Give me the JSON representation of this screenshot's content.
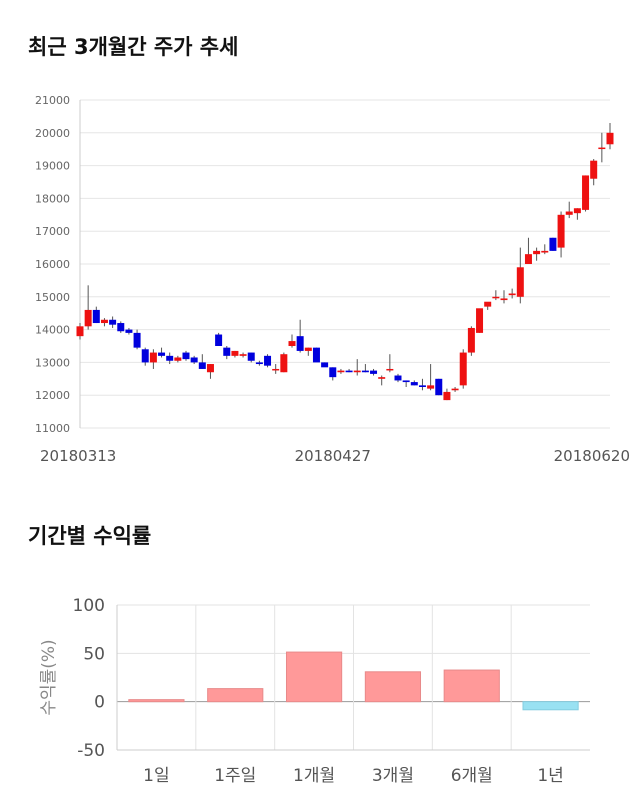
{
  "titles": {
    "price_trend": "최근 3개월간 주가 추세",
    "returns": "기간별 수익률"
  },
  "chart_data": [
    {
      "type": "candlestick",
      "title": "최근 3개월간 주가 추세",
      "ylim": [
        11000,
        21000
      ],
      "y_ticks": [
        "11000",
        "12000",
        "13000",
        "14000",
        "15000",
        "16000",
        "17000",
        "18000",
        "19000",
        "20000",
        "21000"
      ],
      "x_labels": [
        {
          "index": 0,
          "label": "20180313"
        },
        {
          "index": 31,
          "label": "20180427"
        },
        {
          "index": 63,
          "label": "20180620"
        }
      ],
      "up_color": "#ee1111",
      "down_color": "#0000dd",
      "ohlc": [
        [
          13800,
          14200,
          13700,
          14100
        ],
        [
          14100,
          15350,
          14000,
          14600
        ],
        [
          14600,
          14700,
          14200,
          14200
        ],
        [
          14200,
          14350,
          14100,
          14300
        ],
        [
          14300,
          14400,
          14050,
          14150
        ],
        [
          14200,
          14250,
          13900,
          13950
        ],
        [
          14000,
          14050,
          13850,
          13900
        ],
        [
          13900,
          14000,
          13400,
          13450
        ],
        [
          13400,
          13450,
          12900,
          13000
        ],
        [
          13000,
          13400,
          12800,
          13300
        ],
        [
          13300,
          13450,
          13150,
          13200
        ],
        [
          13200,
          13300,
          12950,
          13050
        ],
        [
          13050,
          13200,
          13000,
          13150
        ],
        [
          13300,
          13350,
          13050,
          13100
        ],
        [
          13150,
          13200,
          12950,
          13000
        ],
        [
          13000,
          13250,
          12800,
          12800
        ],
        [
          12700,
          12950,
          12500,
          12950
        ],
        [
          13850,
          13900,
          13500,
          13500
        ],
        [
          13450,
          13500,
          13100,
          13200
        ],
        [
          13200,
          13350,
          13150,
          13350
        ],
        [
          13200,
          13300,
          13150,
          13250
        ],
        [
          13300,
          13300,
          13000,
          13050
        ],
        [
          13000,
          13050,
          12900,
          12950
        ],
        [
          13200,
          13250,
          12850,
          12900
        ],
        [
          12800,
          12950,
          12650,
          12800
        ],
        [
          12700,
          13300,
          12700,
          13250
        ],
        [
          13500,
          13850,
          13450,
          13650
        ],
        [
          13800,
          14300,
          13300,
          13350
        ],
        [
          13350,
          13450,
          13200,
          13450
        ],
        [
          13450,
          13450,
          13100,
          13000
        ],
        [
          13000,
          13000,
          12900,
          12850
        ],
        [
          12850,
          12850,
          12450,
          12550
        ],
        [
          12700,
          12800,
          12650,
          12750
        ],
        [
          12750,
          12800,
          12700,
          12700
        ],
        [
          12700,
          13100,
          12600,
          12750
        ],
        [
          12750,
          12950,
          12700,
          12700
        ],
        [
          12750,
          12800,
          12600,
          12650
        ],
        [
          12500,
          12600,
          12300,
          12550
        ],
        [
          12800,
          13250,
          12700,
          12800
        ],
        [
          12600,
          12650,
          12400,
          12450
        ],
        [
          12450,
          12450,
          12250,
          12400
        ],
        [
          12400,
          12450,
          12300,
          12300
        ],
        [
          12300,
          12500,
          12150,
          12250
        ],
        [
          12200,
          12950,
          12150,
          12300
        ],
        [
          12500,
          12500,
          12000,
          12000
        ],
        [
          11850,
          12200,
          11850,
          12100
        ],
        [
          12150,
          12250,
          12100,
          12200
        ],
        [
          12300,
          13400,
          12200,
          13300
        ],
        [
          13300,
          14100,
          13200,
          14050
        ],
        [
          13900,
          14600,
          13900,
          14650
        ],
        [
          14700,
          14800,
          14600,
          14850
        ],
        [
          15000,
          15200,
          14900,
          15000
        ],
        [
          14900,
          15200,
          14800,
          14950
        ],
        [
          15050,
          15250,
          14950,
          15100
        ],
        [
          15000,
          16500,
          14800,
          15900
        ],
        [
          16000,
          16800,
          16000,
          16300
        ],
        [
          16300,
          16500,
          16100,
          16400
        ],
        [
          16350,
          16600,
          16300,
          16400
        ],
        [
          16800,
          16800,
          16400,
          16400
        ],
        [
          16500,
          17600,
          16200,
          17500
        ],
        [
          17500,
          17900,
          17400,
          17600
        ],
        [
          17550,
          17700,
          17350,
          17700
        ],
        [
          17650,
          18700,
          17600,
          18700
        ],
        [
          18600,
          19200,
          18400,
          19150
        ],
        [
          19550,
          20000,
          19100,
          19550
        ],
        [
          19650,
          20300,
          19500,
          20000
        ]
      ]
    },
    {
      "type": "bar",
      "title": "기간별 수익률",
      "ylabel": "수익률(%)",
      "ylim": [
        -50,
        100
      ],
      "y_ticks": [
        "-50",
        "0",
        "50",
        "100"
      ],
      "categories": [
        "1일",
        "1주일",
        "1개월",
        "3개월",
        "6개월",
        "1년"
      ],
      "values": [
        2.1,
        13.5,
        51.3,
        30.9,
        32.7,
        -8.4
      ],
      "positive_color": "#ff9999",
      "negative_color": "#99e1f2"
    }
  ]
}
